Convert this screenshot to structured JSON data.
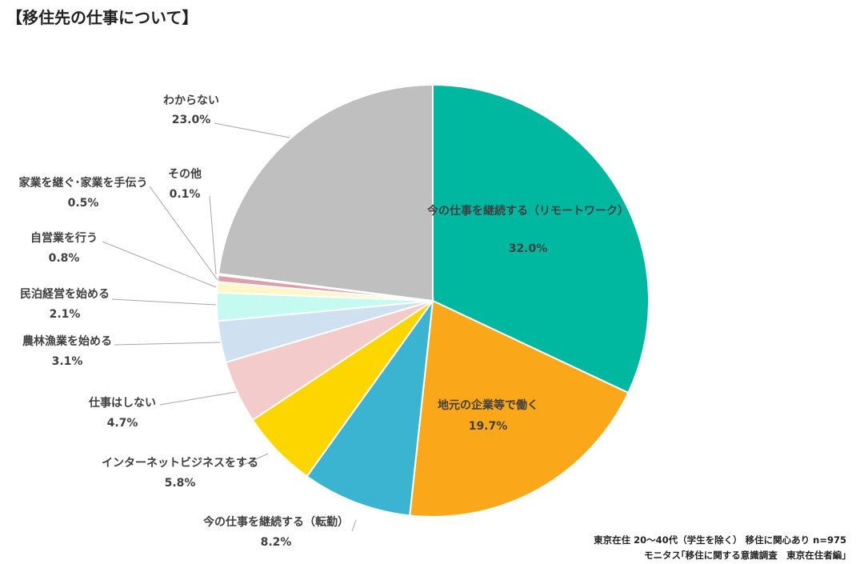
{
  "chart_data": {
    "type": "pie",
    "title": "【移住先の仕事について】",
    "slices": [
      {
        "label": "今の仕事を継続する（リモートワーク）",
        "value": 32.0,
        "value_label": "32.0%",
        "color": "#00B8A0"
      },
      {
        "label": "地元の企業等で働く",
        "value": 19.7,
        "value_label": "19.7%",
        "color": "#FAA71A"
      },
      {
        "label": "今の仕事を継続する（転勤）",
        "value": 8.2,
        "value_label": "8.2%",
        "color": "#3AB4D0"
      },
      {
        "label": "インターネットビジネスをする",
        "value": 5.8,
        "value_label": "5.8%",
        "color": "#FDD600"
      },
      {
        "label": "仕事はしない",
        "value": 4.7,
        "value_label": "4.7%",
        "color": "#F3CBCB"
      },
      {
        "label": "農林漁業を始める",
        "value": 3.1,
        "value_label": "3.1%",
        "color": "#CFE0F0"
      },
      {
        "label": "民泊経営を始める",
        "value": 2.1,
        "value_label": "2.1%",
        "color": "#C4FAF0"
      },
      {
        "label": "自営業を行う",
        "value": 0.8,
        "value_label": "0.8%",
        "color": "#FFF7C8"
      },
      {
        "label": "家業を継ぐ･家業を手伝う",
        "value": 0.5,
        "value_label": "0.5%",
        "color": "#DDA0A8"
      },
      {
        "label": "その他",
        "value": 0.1,
        "value_label": "0.1%",
        "color": "#9A9ADA"
      },
      {
        "label": "わからない",
        "value": 23.0,
        "value_label": "23.0%",
        "color": "#BFBFBF"
      }
    ]
  },
  "footnotes": {
    "line1": "東京在住 20～40代（学生を除く） 移住に関心あり n=975",
    "line2": "モニタス｢移住に関する意識調査　東京在住者編｣"
  }
}
